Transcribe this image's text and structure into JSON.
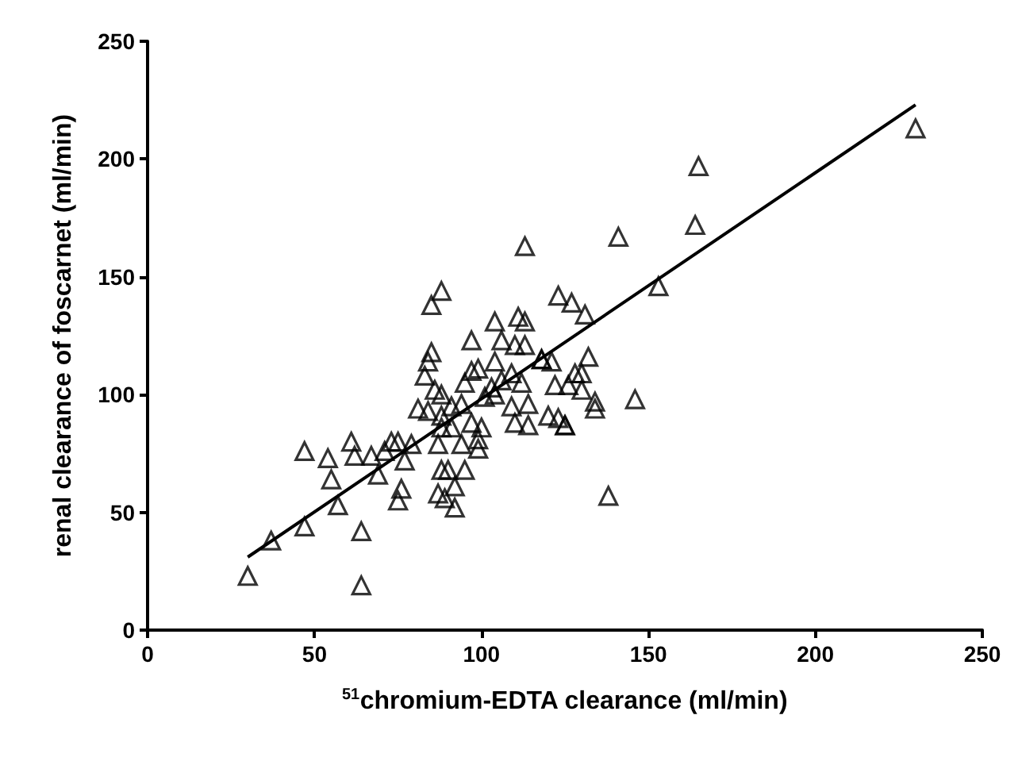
{
  "chart_data": {
    "type": "scatter",
    "xlabel": "$^{51}$chromium-EDTA clearance (ml/min)",
    "ylabel": "renal clearance of foscarnet (ml/min)",
    "xlim": [
      0,
      250
    ],
    "ylim": [
      0,
      250
    ],
    "xticks": [
      0,
      50,
      100,
      150,
      200,
      250
    ],
    "yticks": [
      0,
      50,
      100,
      150,
      200,
      250
    ],
    "grid": false,
    "series": [
      {
        "marker": "triangle",
        "color": "#000000",
        "x": [
          30,
          37,
          47,
          47,
          54,
          55,
          57,
          61,
          62,
          64,
          64,
          67,
          69,
          71,
          73,
          75,
          77,
          79,
          76,
          75,
          85,
          84,
          83,
          86,
          81,
          88,
          87,
          88,
          87,
          89,
          113,
          141,
          88,
          85,
          123,
          127,
          131,
          104,
          111,
          113,
          97,
          106,
          110,
          113,
          118,
          121,
          132,
          128,
          130,
          97,
          99,
          104,
          109,
          112,
          106,
          103,
          95,
          122,
          126,
          130,
          134,
          134,
          84,
          88,
          91,
          94,
          101,
          104,
          109,
          114,
          120,
          123,
          125,
          110,
          114,
          88,
          91,
          97,
          100,
          99,
          94,
          99,
          90,
          95,
          92,
          92,
          138,
          230,
          165,
          164,
          153,
          146,
          125,
          118
        ],
        "values": [
          23,
          38,
          44,
          76,
          73,
          64,
          53,
          80,
          74,
          42,
          19,
          74,
          66,
          76,
          80,
          80,
          72,
          79,
          60,
          55,
          118,
          114,
          108,
          102,
          94,
          100,
          79,
          68,
          58,
          56,
          163,
          167,
          144,
          138,
          142,
          139,
          134,
          131,
          133,
          131,
          123,
          123,
          121,
          121,
          115,
          114,
          116,
          109,
          109,
          110,
          111,
          114,
          109,
          105,
          106,
          103,
          105,
          104,
          104,
          102,
          97,
          94,
          93,
          91,
          95,
          96,
          99,
          100,
          95,
          96,
          91,
          90,
          87,
          88,
          87,
          86,
          86,
          88,
          86,
          81,
          79,
          77,
          68,
          68,
          61,
          52,
          57,
          213,
          197,
          172,
          146,
          98,
          87,
          115
        ]
      },
      {
        "type": "line",
        "marker": "none",
        "color": "#000000",
        "x": [
          30,
          230
        ],
        "values": [
          31,
          223
        ]
      }
    ]
  }
}
